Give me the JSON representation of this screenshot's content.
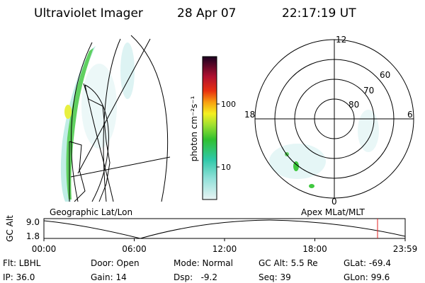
{
  "header": {
    "title": "Ultraviolet Imager",
    "date": "28 Apr 07",
    "time": "22:17:19 UT"
  },
  "left_panel": {
    "label": "Geographic Lat/Lon"
  },
  "colorbar": {
    "label": "photon cm⁻²s⁻¹",
    "ticks": [
      "100",
      "10"
    ]
  },
  "polar": {
    "label": "Apex MLat/MLT",
    "mlt_labels": [
      "12",
      "6",
      "0",
      "18"
    ],
    "lat_labels": [
      "60",
      "70",
      "80"
    ]
  },
  "altitude_plot": {
    "ylabel": "GC Alt",
    "yticks": [
      "9.0",
      "1.8"
    ],
    "xticks": [
      "00:00",
      "06:00",
      "12:00",
      "18:00",
      "23:59"
    ]
  },
  "footer": {
    "rows": [
      [
        "Flt: LBHL",
        "Door: Open",
        "Mode: Normal",
        "GC Alt: 5.5 Re",
        "GLat: -69.4"
      ],
      [
        "IP: 36.0",
        "Gain: 14",
        "Dsp:   -9.2",
        "Seq: 39",
        "GLon: 99.6"
      ]
    ]
  }
}
